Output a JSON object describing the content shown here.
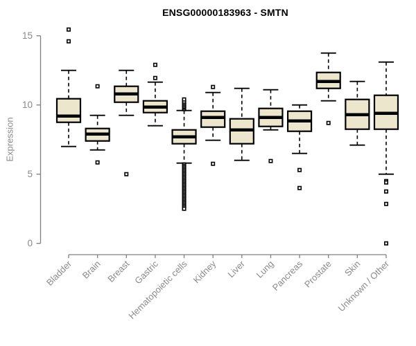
{
  "chart_data": {
    "type": "boxplot",
    "title": "ENSG00000183963 - SMTN",
    "ylabel": "Expression",
    "xlabel": "",
    "ylim": [
      0,
      15
    ],
    "yticks": [
      0,
      5,
      10,
      15
    ],
    "grid": false,
    "legend": "none",
    "categories": [
      "Bladder",
      "Brain",
      "Breast",
      "Gastric",
      "Hematopoietic cells",
      "Kidney",
      "Liver",
      "Lung",
      "Pancreas",
      "Prostate",
      "Skin",
      "Unknown / Other"
    ],
    "series": [
      {
        "name": "Bladder",
        "whisker_low": 7.0,
        "q1": 8.75,
        "median": 9.2,
        "q3": 10.45,
        "whisker_high": 12.5,
        "outliers": [
          14.6,
          15.45
        ]
      },
      {
        "name": "Brain",
        "whisker_low": 6.75,
        "q1": 7.4,
        "median": 7.9,
        "q3": 8.3,
        "whisker_high": 9.25,
        "outliers": [
          5.85,
          11.35
        ]
      },
      {
        "name": "Breast",
        "whisker_low": 9.25,
        "q1": 10.2,
        "median": 10.8,
        "q3": 11.35,
        "whisker_high": 12.5,
        "outliers": [
          5.0
        ]
      },
      {
        "name": "Gastric",
        "whisker_low": 8.5,
        "q1": 9.45,
        "median": 9.85,
        "q3": 10.3,
        "whisker_high": 11.65,
        "outliers": [
          11.95,
          12.9
        ]
      },
      {
        "name": "Hematopoietic cells",
        "whisker_low": 5.8,
        "q1": 7.2,
        "median": 7.7,
        "q3": 8.2,
        "whisker_high": 9.6,
        "outliers": [
          9.7,
          9.8,
          9.85,
          9.95,
          10.05,
          10.15,
          10.25,
          10.4,
          5.7,
          5.6,
          5.5,
          5.4,
          5.3,
          5.2,
          5.1,
          5.0,
          4.9,
          4.8,
          4.7,
          4.6,
          4.5,
          4.4,
          4.3,
          4.2,
          4.1,
          4.0,
          3.9,
          3.8,
          3.7,
          3.6,
          3.5,
          3.4,
          3.3,
          3.2,
          3.1,
          3.0,
          2.9,
          2.8,
          2.7,
          2.6,
          2.5
        ]
      },
      {
        "name": "Kidney",
        "whisker_low": 7.45,
        "q1": 8.4,
        "median": 9.1,
        "q3": 9.55,
        "whisker_high": 10.9,
        "outliers": [
          5.75,
          11.3
        ]
      },
      {
        "name": "Liver",
        "whisker_low": 6.0,
        "q1": 7.2,
        "median": 8.2,
        "q3": 9.0,
        "whisker_high": 11.2,
        "outliers": []
      },
      {
        "name": "Lung",
        "whisker_low": 8.2,
        "q1": 8.45,
        "median": 9.1,
        "q3": 9.75,
        "whisker_high": 11.1,
        "outliers": [
          5.95
        ]
      },
      {
        "name": "Pancreas",
        "whisker_low": 6.5,
        "q1": 8.1,
        "median": 8.85,
        "q3": 9.55,
        "whisker_high": 10.0,
        "outliers": [
          5.3,
          4.0
        ]
      },
      {
        "name": "Prostate",
        "whisker_low": 10.3,
        "q1": 11.2,
        "median": 11.7,
        "q3": 12.35,
        "whisker_high": 13.75,
        "outliers": [
          8.7
        ]
      },
      {
        "name": "Skin",
        "whisker_low": 7.1,
        "q1": 8.25,
        "median": 9.3,
        "q3": 10.4,
        "whisker_high": 11.7,
        "outliers": []
      },
      {
        "name": "Unknown / Other",
        "whisker_low": 5.0,
        "q1": 8.25,
        "median": 9.4,
        "q3": 10.7,
        "whisker_high": 13.1,
        "outliers": [
          4.5,
          4.4,
          3.75,
          2.85,
          0.0
        ]
      }
    ],
    "style": {
      "box_fill": "#ECE6CD",
      "box_border": "#000000",
      "median_color": "#000000",
      "whisker_color": "#000000",
      "outlier_color": "#000000",
      "axis_color": "#808080",
      "tick_label_color": "#8a8a8a",
      "title_color": "#000000",
      "background": "#ffffff"
    }
  }
}
